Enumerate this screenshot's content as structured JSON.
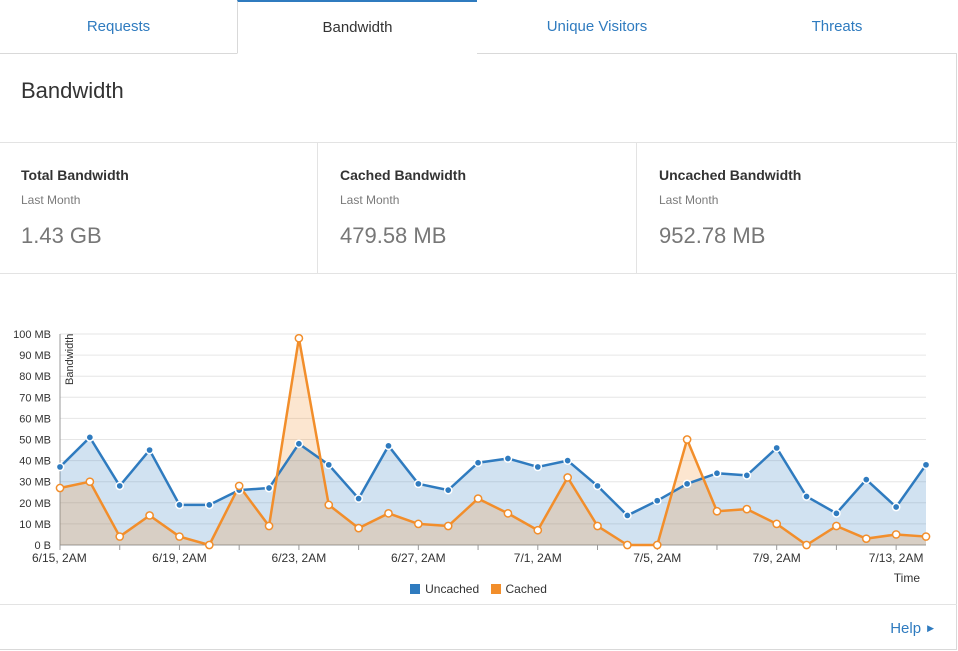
{
  "tabs": [
    {
      "label": "Requests",
      "active": false
    },
    {
      "label": "Bandwidth",
      "active": true
    },
    {
      "label": "Unique Visitors",
      "active": false
    },
    {
      "label": "Threats",
      "active": false
    }
  ],
  "section": {
    "title": "Bandwidth"
  },
  "stats": [
    {
      "label": "Total Bandwidth",
      "period": "Last Month",
      "value": "1.43 GB"
    },
    {
      "label": "Cached Bandwidth",
      "period": "Last Month",
      "value": "479.58 MB"
    },
    {
      "label": "Uncached Bandwidth",
      "period": "Last Month",
      "value": "952.78 MB"
    }
  ],
  "help": {
    "label": "Help",
    "icon": "caret-right-icon"
  },
  "colors": {
    "accent": "#2f7bbf",
    "uncached": "#2f7bbf",
    "cached": "#f28e2b"
  },
  "chart_data": {
    "type": "area",
    "title": "",
    "xlabel": "Time",
    "ylabel": "Bandwidth",
    "ylim": [
      0,
      100
    ],
    "yticks": [
      "0 B",
      "10 MB",
      "20 MB",
      "30 MB",
      "40 MB",
      "50 MB",
      "60 MB",
      "70 MB",
      "80 MB",
      "90 MB",
      "100 MB"
    ],
    "xticks": [
      {
        "label": "6/15, 2AM",
        "index": 0
      },
      {
        "label": "6/19, 2AM",
        "index": 4
      },
      {
        "label": "6/23, 2AM",
        "index": 8
      },
      {
        "label": "6/27, 2AM",
        "index": 12
      },
      {
        "label": "7/1, 2AM",
        "index": 16
      },
      {
        "label": "7/5, 2AM",
        "index": 20
      },
      {
        "label": "7/9, 2AM",
        "index": 24
      },
      {
        "label": "7/13, 2AM",
        "index": 28
      }
    ],
    "grid": true,
    "legend_position": "bottom",
    "series": [
      {
        "name": "Uncached",
        "color": "#2f7bbf",
        "values": [
          37,
          51,
          28,
          45,
          19,
          19,
          26,
          27,
          48,
          38,
          22,
          47,
          29,
          26,
          39,
          41,
          37,
          40,
          28,
          14,
          21,
          29,
          34,
          33,
          46,
          23,
          15,
          31,
          18,
          38
        ]
      },
      {
        "name": "Cached",
        "color": "#f28e2b",
        "values": [
          27,
          30,
          4,
          14,
          4,
          0,
          28,
          9,
          98,
          19,
          8,
          15,
          10,
          9,
          22,
          15,
          7,
          32,
          9,
          0,
          0,
          50,
          16,
          17,
          10,
          0,
          9,
          3,
          5,
          4
        ]
      }
    ]
  }
}
